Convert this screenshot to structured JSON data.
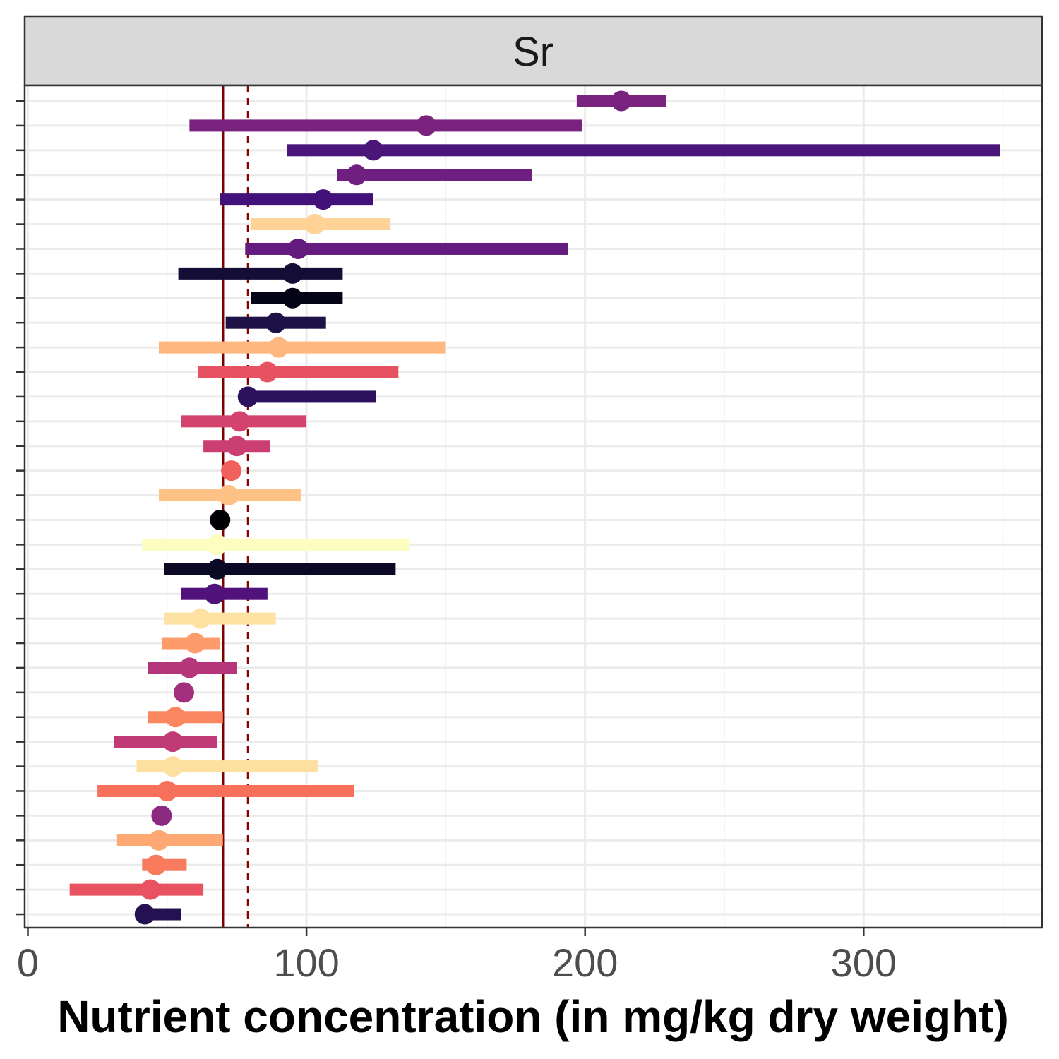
{
  "chart_data": {
    "type": "scatter",
    "style": "point-range (dot with horizontal interval bar)",
    "facet_label": "Sr",
    "xlabel": "Nutrient concentration (in mg/kg dry weight)",
    "ylabel": "",
    "xlim": [
      -1,
      364
    ],
    "x_ticks": [
      0,
      100,
      200,
      300
    ],
    "x_tick_labels": [
      "0",
      "100",
      "200",
      "300"
    ],
    "y_tick_labels_visible": false,
    "grid": true,
    "legend": "none",
    "reference_lines": [
      {
        "x": 70,
        "style": "solid",
        "color": "#7f0000"
      },
      {
        "x": 79,
        "style": "dashed",
        "color": "#8b0000"
      }
    ],
    "points": [
      {
        "value": 213,
        "low": 197,
        "high": 229,
        "color": "#7a237e"
      },
      {
        "value": 143,
        "low": 58,
        "high": 199,
        "color": "#7a237e"
      },
      {
        "value": 124,
        "low": 93,
        "high": 349,
        "color": "#4b1579"
      },
      {
        "value": 118,
        "low": 111,
        "high": 181,
        "color": "#6f1f80"
      },
      {
        "value": 106,
        "low": 69,
        "high": 124,
        "color": "#43117a"
      },
      {
        "value": 103,
        "low": 80,
        "high": 130,
        "color": "#fed395"
      },
      {
        "value": 97,
        "low": 78,
        "high": 194,
        "color": "#651a80"
      },
      {
        "value": 95,
        "low": 54,
        "high": 113,
        "color": "#140e36"
      },
      {
        "value": 95,
        "low": 80,
        "high": 113,
        "color": "#050416"
      },
      {
        "value": 89,
        "low": 71,
        "high": 107,
        "color": "#1d1147"
      },
      {
        "value": 90,
        "low": 47,
        "high": 150,
        "color": "#feb77e"
      },
      {
        "value": 86,
        "low": 61,
        "high": 133,
        "color": "#e75263"
      },
      {
        "value": 79,
        "low": 79,
        "high": 125,
        "color": "#2c115f"
      },
      {
        "value": 76,
        "low": 55,
        "high": 100,
        "color": "#d3436e"
      },
      {
        "value": 75,
        "low": 63,
        "high": 87,
        "color": "#cb3e71"
      },
      {
        "value": 73,
        "low": 73,
        "high": 73,
        "color": "#f1605d"
      },
      {
        "value": 72,
        "low": 47,
        "high": 98,
        "color": "#fec287"
      },
      {
        "value": 69,
        "low": 69,
        "high": 69,
        "color": "#000004"
      },
      {
        "value": 68,
        "low": 41,
        "high": 137,
        "color": "#fcfdbf"
      },
      {
        "value": 68,
        "low": 49,
        "high": 132,
        "color": "#0b0924"
      },
      {
        "value": 67,
        "low": 55,
        "high": 86,
        "color": "#51127c"
      },
      {
        "value": 62,
        "low": 49,
        "high": 89,
        "color": "#fde2a3"
      },
      {
        "value": 60,
        "low": 48,
        "high": 69,
        "color": "#fd9b6b"
      },
      {
        "value": 58,
        "low": 43,
        "high": 75,
        "color": "#b5367a"
      },
      {
        "value": 56,
        "low": 56,
        "high": 56,
        "color": "#a3307e"
      },
      {
        "value": 53,
        "low": 43,
        "high": 70,
        "color": "#fb8761"
      },
      {
        "value": 52,
        "low": 31,
        "high": 68,
        "color": "#c03a76"
      },
      {
        "value": 52,
        "low": 39,
        "high": 104,
        "color": "#fde0a0"
      },
      {
        "value": 50,
        "low": 25,
        "high": 117,
        "color": "#f7705c"
      },
      {
        "value": 48,
        "low": 48,
        "high": 48,
        "color": "#8c2981"
      },
      {
        "value": 47,
        "low": 32,
        "high": 70,
        "color": "#fea873"
      },
      {
        "value": 46,
        "low": 41,
        "high": 57,
        "color": "#f97b5d"
      },
      {
        "value": 44,
        "low": 15,
        "high": 63,
        "color": "#e85362"
      },
      {
        "value": 42,
        "low": 42,
        "high": 55,
        "color": "#231151"
      }
    ]
  }
}
